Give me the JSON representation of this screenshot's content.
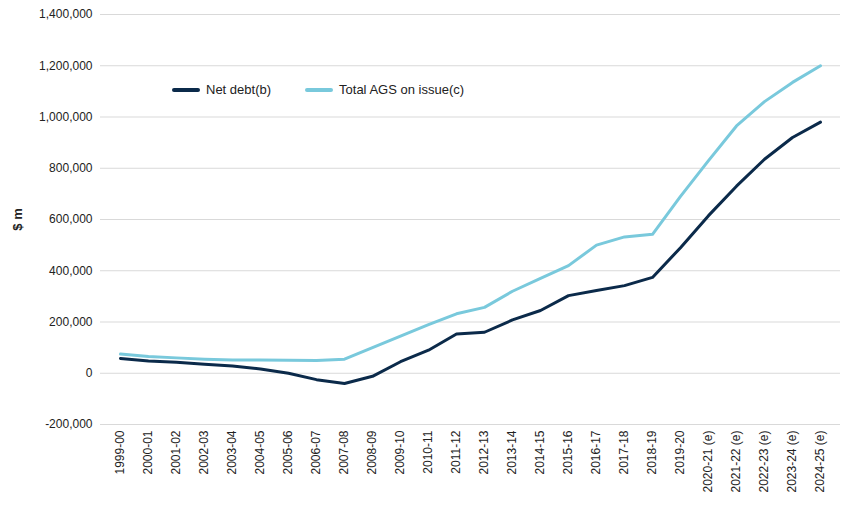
{
  "chart_data": {
    "type": "line",
    "y_label": "$ m",
    "categories": [
      "1999-00",
      "2000-01",
      "2001-02",
      "2002-03",
      "2003-04",
      "2004-05",
      "2005-06",
      "2006-07",
      "2007-08",
      "2008-09",
      "2009-10",
      "2010-11",
      "2011-12",
      "2012-13",
      "2013-14",
      "2014-15",
      "2015-16",
      "2016-17",
      "2017-18",
      "2018-19",
      "2019-20",
      "2020-21 (e)",
      "2021-22 (e)",
      "2022-23 (e)",
      "2023-24 (e)",
      "2024-25 (e)"
    ],
    "series": [
      {
        "name": "Net debt(b)",
        "color": "#0b2a4a",
        "values": [
          58000,
          48000,
          43000,
          35000,
          28000,
          17000,
          0,
          -25000,
          -40000,
          -12000,
          45000,
          90000,
          153000,
          160000,
          208000,
          245000,
          303000,
          323000,
          342000,
          374000,
          490000,
          615000,
          730000,
          835000,
          920000,
          980000
        ]
      },
      {
        "name": "Total AGS on issue(c)",
        "color": "#79c9dc",
        "values": [
          75000,
          65000,
          60000,
          55000,
          52000,
          52000,
          51000,
          50000,
          55000,
          100000,
          145000,
          190000,
          232000,
          257000,
          320000,
          370000,
          420000,
          500000,
          532000,
          542000,
          690000,
          830000,
          965000,
          1060000,
          1135000,
          1200000
        ]
      }
    ],
    "ylim": [
      -200000,
      1400000
    ],
    "yticks": [
      {
        "value": -200000,
        "label": "-200,000"
      },
      0,
      {
        "value": 200000,
        "label": "200,000"
      },
      {
        "value": 400000,
        "label": "400,000"
      },
      {
        "value": 600000,
        "label": "600,000"
      },
      {
        "value": 800000,
        "label": "800,000"
      },
      {
        "value": 1000000,
        "label": "1,000,000"
      },
      {
        "value": 1200000,
        "label": "1,200,000"
      },
      {
        "value": 1400000,
        "label": "1,400,000"
      }
    ],
    "grid": true,
    "legend": "top-left"
  }
}
